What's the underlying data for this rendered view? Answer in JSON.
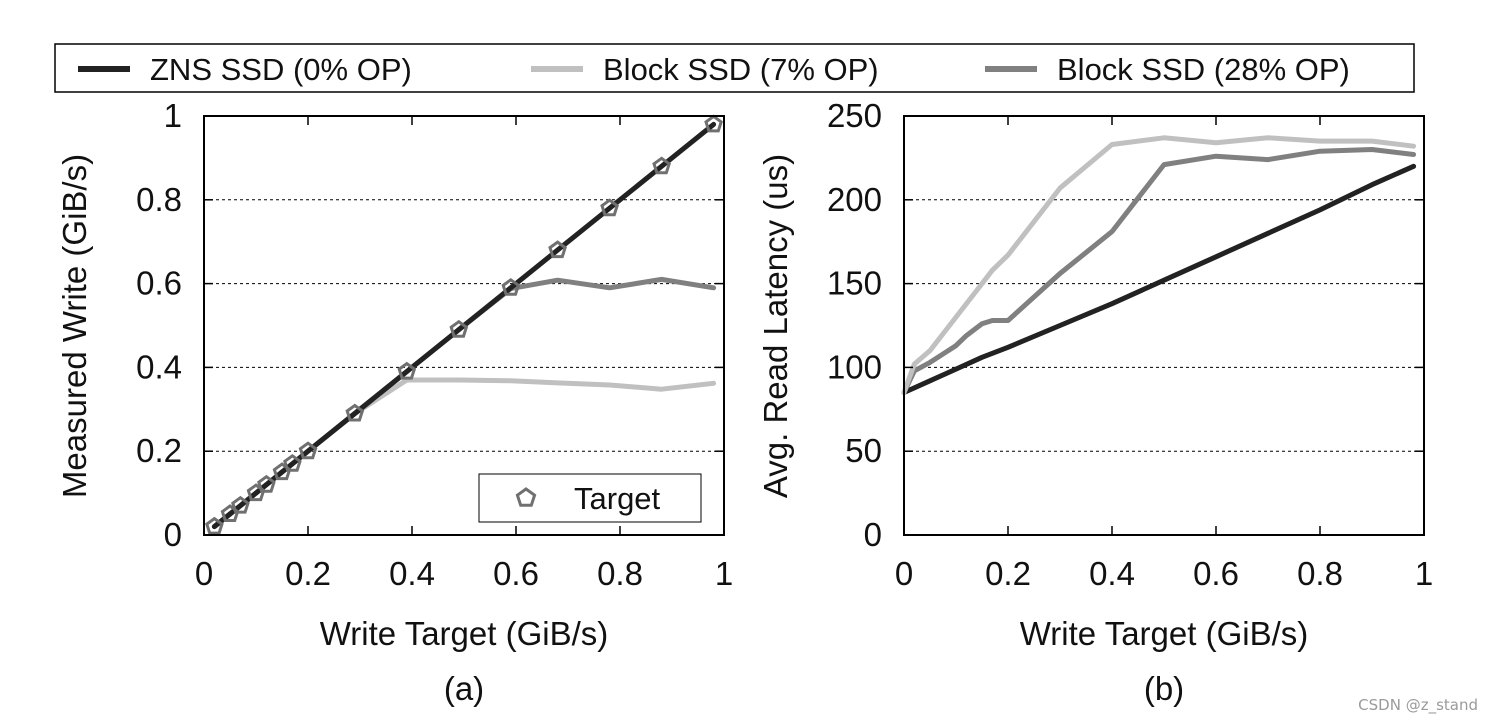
{
  "legend": {
    "zns": "ZNS SSD (0% OP)",
    "block7": "Block SSD (7% OP)",
    "block28": "Block SSD (28% OP)"
  },
  "colors": {
    "zns": "#222222",
    "block7": "#c0c0c0",
    "block28": "#808080",
    "target_marker": "#707070"
  },
  "watermark": "CSDN @z_stand",
  "chart_data": [
    {
      "type": "line",
      "caption": "(a)",
      "xlabel": "Write Target (GiB/s)",
      "ylabel": "Measured Write (GiB/s)",
      "xlim": [
        0,
        1
      ],
      "ylim": [
        0,
        1
      ],
      "xticks": [
        "0",
        "0.2",
        "0.4",
        "0.6",
        "0.8",
        "1"
      ],
      "yticks": [
        "0",
        "0.2",
        "0.4",
        "0.6",
        "0.8",
        "1"
      ],
      "grid": "horizontal dashed",
      "inner_legend": {
        "label": "Target",
        "placement": "bottom-right"
      },
      "series": [
        {
          "key": "zns",
          "name": "ZNS SSD (0% OP)",
          "x": [
            0.02,
            0.05,
            0.07,
            0.1,
            0.12,
            0.15,
            0.17,
            0.2,
            0.29,
            0.39,
            0.49,
            0.59,
            0.68,
            0.78,
            0.88,
            0.98
          ],
          "y": [
            0.02,
            0.05,
            0.07,
            0.1,
            0.12,
            0.15,
            0.17,
            0.2,
            0.29,
            0.39,
            0.49,
            0.59,
            0.68,
            0.78,
            0.88,
            0.98
          ]
        },
        {
          "key": "block7",
          "name": "Block SSD (7% OP)",
          "x": [
            0.02,
            0.05,
            0.07,
            0.1,
            0.12,
            0.15,
            0.17,
            0.2,
            0.29,
            0.39,
            0.49,
            0.59,
            0.68,
            0.78,
            0.88,
            0.98
          ],
          "y": [
            0.02,
            0.05,
            0.07,
            0.1,
            0.12,
            0.15,
            0.17,
            0.2,
            0.29,
            0.37,
            0.37,
            0.368,
            0.363,
            0.358,
            0.348,
            0.362
          ]
        },
        {
          "key": "block28",
          "name": "Block SSD (28% OP)",
          "x": [
            0.02,
            0.05,
            0.07,
            0.1,
            0.12,
            0.15,
            0.17,
            0.2,
            0.29,
            0.39,
            0.49,
            0.59,
            0.68,
            0.78,
            0.88,
            0.98
          ],
          "y": [
            0.02,
            0.05,
            0.07,
            0.1,
            0.12,
            0.15,
            0.17,
            0.2,
            0.29,
            0.39,
            0.49,
            0.588,
            0.608,
            0.59,
            0.61,
            0.59
          ]
        }
      ],
      "target_points": {
        "x": [
          0.02,
          0.05,
          0.07,
          0.1,
          0.12,
          0.15,
          0.17,
          0.2,
          0.29,
          0.39,
          0.49,
          0.59,
          0.68,
          0.78,
          0.88,
          0.98
        ],
        "y": [
          0.02,
          0.05,
          0.07,
          0.1,
          0.12,
          0.15,
          0.17,
          0.2,
          0.29,
          0.39,
          0.49,
          0.59,
          0.68,
          0.78,
          0.88,
          0.98
        ]
      }
    },
    {
      "type": "line",
      "caption": "(b)",
      "xlabel": "Write Target (GiB/s)",
      "ylabel": "Avg. Read Latency (us)",
      "xlim": [
        0,
        1
      ],
      "ylim": [
        0,
        250
      ],
      "xticks": [
        "0",
        "0.2",
        "0.4",
        "0.6",
        "0.8",
        "1"
      ],
      "yticks": [
        "0",
        "50",
        "100",
        "150",
        "200",
        "250"
      ],
      "grid": "horizontal dashed",
      "series": [
        {
          "key": "zns",
          "name": "ZNS SSD (0% OP)",
          "x": [
            0,
            0.05,
            0.1,
            0.15,
            0.2,
            0.3,
            0.4,
            0.5,
            0.6,
            0.7,
            0.8,
            0.9,
            0.98
          ],
          "y": [
            85,
            92,
            99,
            106,
            112,
            125,
            138,
            152,
            166,
            180,
            194,
            209,
            220
          ]
        },
        {
          "key": "block7",
          "name": "Block SSD (7% OP)",
          "x": [
            0,
            0.02,
            0.05,
            0.1,
            0.15,
            0.17,
            0.2,
            0.3,
            0.4,
            0.5,
            0.6,
            0.7,
            0.8,
            0.9,
            0.98
          ],
          "y": [
            85,
            102,
            110,
            130,
            150,
            158,
            167,
            207,
            233,
            237,
            234,
            237,
            235,
            235,
            232
          ]
        },
        {
          "key": "block28",
          "name": "Block SSD (28% OP)",
          "x": [
            0,
            0.02,
            0.05,
            0.07,
            0.1,
            0.12,
            0.15,
            0.17,
            0.2,
            0.3,
            0.4,
            0.5,
            0.6,
            0.7,
            0.8,
            0.9,
            0.98
          ],
          "y": [
            85,
            98,
            103,
            107,
            113,
            119,
            126,
            128,
            128,
            156,
            181,
            221,
            226,
            224,
            229,
            230,
            227
          ]
        }
      ]
    }
  ]
}
